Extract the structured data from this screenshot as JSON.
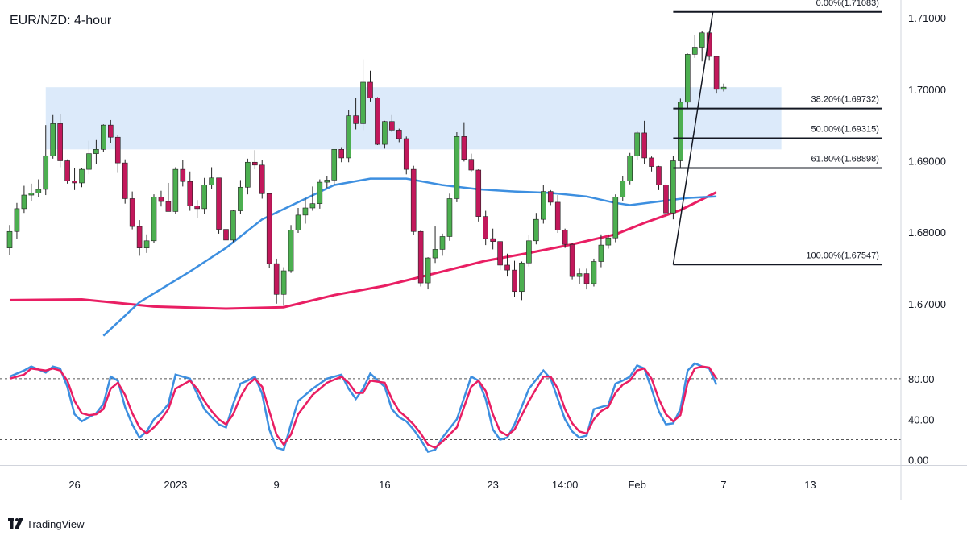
{
  "chart_data": {
    "type": "candlestick",
    "title": "EUR/NZD: 4-hour",
    "brand": "TradingView",
    "colors": {
      "up": "#4caf50",
      "down": "#c2185b",
      "wick": "#222222",
      "sma_fast": "#3d8fe0",
      "sma_slow": "#e91e63",
      "zone": "#dceafa",
      "stoch_k": "#3d8fe0",
      "stoch_d": "#e91e63"
    },
    "price_axis": {
      "min": 1.664,
      "max": 1.7125,
      "ticks": [
        {
          "value": 1.71,
          "label": "1.71000"
        },
        {
          "value": 1.7,
          "label": "1.70000"
        },
        {
          "value": 1.69,
          "label": "1.69000"
        },
        {
          "value": 1.68,
          "label": "1.68000"
        },
        {
          "value": 1.67,
          "label": "1.67000"
        }
      ]
    },
    "time_axis": {
      "start_index": 0,
      "end_index": 120,
      "ticks": [
        {
          "index": 9,
          "label": "26"
        },
        {
          "index": 23,
          "label": "2023"
        },
        {
          "index": 37,
          "label": "9"
        },
        {
          "index": 52,
          "label": "16"
        },
        {
          "index": 67,
          "label": "23"
        },
        {
          "index": 77,
          "label": "14:00"
        },
        {
          "index": 87,
          "label": "Feb"
        },
        {
          "index": 99,
          "label": "7"
        },
        {
          "index": 111,
          "label": "13"
        }
      ]
    },
    "resistance_zone": {
      "low": 1.6916,
      "high": 1.7003,
      "from_index": 5,
      "to_index": 107
    },
    "fibonacci": {
      "high": 1.71083,
      "low": 1.67547,
      "from_index": 92,
      "to_index": 121,
      "levels": [
        {
          "value": 1.71083,
          "label": "0.00%(1.71083)"
        },
        {
          "value": 1.69732,
          "label": "38.20%(1.69732)"
        },
        {
          "value": 1.69315,
          "label": "50.00%(1.69315)"
        },
        {
          "value": 1.68898,
          "label": "61.80%(1.68898)"
        },
        {
          "value": 1.67547,
          "label": "100.00%(1.67547)"
        }
      ]
    },
    "fib_trend_line": {
      "from": {
        "index": 92,
        "value": 1.67547
      },
      "to": {
        "index": 97.5,
        "value": 1.71083
      }
    },
    "sma_fast": [
      [
        13,
        1.6655
      ],
      [
        18,
        1.6702
      ],
      [
        25,
        1.6745
      ],
      [
        30,
        1.6778
      ],
      [
        35,
        1.6818
      ],
      [
        40,
        1.6842
      ],
      [
        45,
        1.6866
      ],
      [
        50,
        1.6875
      ],
      [
        55,
        1.6875
      ],
      [
        60,
        1.6866
      ],
      [
        65,
        1.686
      ],
      [
        70,
        1.6857
      ],
      [
        75,
        1.6855
      ],
      [
        80,
        1.685
      ],
      [
        84,
        1.6841
      ],
      [
        86,
        1.6838
      ],
      [
        90,
        1.6843
      ],
      [
        94,
        1.6848
      ],
      [
        98,
        1.685
      ]
    ],
    "sma_slow": [
      [
        0,
        1.6705
      ],
      [
        10,
        1.6706
      ],
      [
        20,
        1.6696
      ],
      [
        30,
        1.6693
      ],
      [
        38,
        1.6695
      ],
      [
        45,
        1.6712
      ],
      [
        52,
        1.6725
      ],
      [
        60,
        1.6745
      ],
      [
        66,
        1.676
      ],
      [
        72,
        1.6771
      ],
      [
        78,
        1.6783
      ],
      [
        84,
        1.6797
      ],
      [
        88,
        1.6813
      ],
      [
        93,
        1.6831
      ],
      [
        98,
        1.6856
      ]
    ],
    "candles": {
      "open": [
        1.6778,
        1.6801,
        1.6833,
        1.6852,
        1.6855,
        1.686,
        1.6907,
        1.6952,
        1.69,
        1.6872,
        1.6869,
        1.6888,
        1.691,
        1.6916,
        1.695,
        1.6933,
        1.6897,
        1.6847,
        1.6808,
        1.6778,
        1.6788,
        1.6849,
        1.6843,
        1.6829,
        1.6888,
        1.6871,
        1.6837,
        1.6833,
        1.6866,
        1.6876,
        1.6804,
        1.6789,
        1.683,
        1.6863,
        1.6898,
        1.6894,
        1.6854,
        1.6756,
        1.6713,
        1.6746,
        1.6803,
        1.6824,
        1.6834,
        1.684,
        1.687,
        1.6873,
        1.6916,
        1.6904,
        1.6963,
        1.6952,
        1.701,
        1.6988,
        1.6923,
        1.6955,
        1.6943,
        1.6931,
        1.6888,
        1.6801,
        1.6729,
        1.6764,
        1.6776,
        1.6794,
        1.6847,
        1.6934,
        1.6902,
        1.6887,
        1.6822,
        1.6791,
        1.6787,
        1.6754,
        1.6747,
        1.6717,
        1.6757,
        1.6788,
        1.6818,
        1.6857,
        1.6842,
        1.6803,
        1.6783,
        1.6738,
        1.6742,
        1.6728,
        1.6759,
        1.6782,
        1.6792,
        1.6849,
        1.6872,
        1.6907,
        1.6939,
        1.6904,
        1.6892,
        1.6866,
        1.6827,
        1.69,
        1.6982,
        1.7049,
        1.7059,
        1.7079,
        1.7046,
        1.7
      ],
      "high": [
        1.681,
        1.6841,
        1.6865,
        1.6868,
        1.6874,
        1.695,
        1.6964,
        1.6965,
        1.6902,
        1.689,
        1.689,
        1.6928,
        1.6929,
        1.6951,
        1.6957,
        1.6936,
        1.6902,
        1.6857,
        1.6817,
        1.6797,
        1.6853,
        1.6858,
        1.6869,
        1.6891,
        1.6901,
        1.6885,
        1.6845,
        1.6876,
        1.6891,
        1.6876,
        1.6813,
        1.6831,
        1.6873,
        1.6903,
        1.6915,
        1.6901,
        1.6855,
        1.6763,
        1.6751,
        1.681,
        1.6834,
        1.6847,
        1.6864,
        1.6874,
        1.6879,
        1.6916,
        1.6918,
        1.6971,
        1.6988,
        1.7042,
        1.7026,
        1.6989,
        1.6956,
        1.6964,
        1.6945,
        1.6934,
        1.6893,
        1.6803,
        1.6765,
        1.6808,
        1.6798,
        1.6854,
        1.694,
        1.6954,
        1.691,
        1.6888,
        1.683,
        1.6805,
        1.6787,
        1.677,
        1.676,
        1.6759,
        1.6796,
        1.6827,
        1.6866,
        1.6859,
        1.6852,
        1.6805,
        1.6785,
        1.6749,
        1.6749,
        1.6763,
        1.6797,
        1.6797,
        1.6853,
        1.6879,
        1.6911,
        1.6942,
        1.6956,
        1.6906,
        1.6893,
        1.6869,
        1.6907,
        1.6987,
        1.705,
        1.7076,
        1.7082,
        1.7081,
        1.7046,
        1.7008
      ],
      "low": [
        1.6768,
        1.679,
        1.6827,
        1.6843,
        1.6849,
        1.6852,
        1.6903,
        1.6891,
        1.6868,
        1.6859,
        1.6863,
        1.6881,
        1.6896,
        1.6912,
        1.6925,
        1.6883,
        1.684,
        1.6804,
        1.6767,
        1.6771,
        1.6785,
        1.6836,
        1.6835,
        1.6826,
        1.6864,
        1.683,
        1.682,
        1.6826,
        1.686,
        1.6798,
        1.6778,
        1.6786,
        1.6826,
        1.6853,
        1.6888,
        1.6847,
        1.675,
        1.67,
        1.6697,
        1.6743,
        1.6799,
        1.6812,
        1.683,
        1.6833,
        1.6862,
        1.6867,
        1.6898,
        1.6898,
        1.6944,
        1.6943,
        1.6983,
        1.6922,
        1.6917,
        1.694,
        1.6926,
        1.6881,
        1.6796,
        1.6724,
        1.672,
        1.6757,
        1.6767,
        1.6788,
        1.6842,
        1.6899,
        1.6885,
        1.6815,
        1.6782,
        1.6776,
        1.6747,
        1.6738,
        1.6709,
        1.6705,
        1.6752,
        1.6783,
        1.6812,
        1.6838,
        1.6799,
        1.6778,
        1.6734,
        1.6728,
        1.672,
        1.6724,
        1.6751,
        1.6777,
        1.6786,
        1.6844,
        1.6867,
        1.6901,
        1.6895,
        1.6885,
        1.6859,
        1.682,
        1.6818,
        1.6891,
        1.6973,
        1.7044,
        1.7039,
        1.704,
        1.6994,
        1.6997
      ],
      "close": [
        1.6801,
        1.6833,
        1.6852,
        1.6855,
        1.686,
        1.6907,
        1.6952,
        1.69,
        1.6872,
        1.6869,
        1.6888,
        1.691,
        1.6916,
        1.695,
        1.6933,
        1.6897,
        1.6847,
        1.6808,
        1.6778,
        1.6788,
        1.6849,
        1.6843,
        1.6829,
        1.6888,
        1.6871,
        1.6837,
        1.6833,
        1.6866,
        1.6876,
        1.6804,
        1.6789,
        1.683,
        1.6863,
        1.6898,
        1.6894,
        1.6854,
        1.6756,
        1.6713,
        1.6746,
        1.6803,
        1.6824,
        1.6834,
        1.684,
        1.687,
        1.6873,
        1.6916,
        1.6904,
        1.6963,
        1.6952,
        1.701,
        1.6988,
        1.6923,
        1.6955,
        1.6943,
        1.6931,
        1.6888,
        1.6801,
        1.6729,
        1.6764,
        1.6776,
        1.6794,
        1.6847,
        1.6934,
        1.6902,
        1.6887,
        1.6822,
        1.6791,
        1.6787,
        1.6754,
        1.6747,
        1.6717,
        1.6757,
        1.6788,
        1.6818,
        1.6857,
        1.6842,
        1.6803,
        1.6783,
        1.6738,
        1.6742,
        1.6728,
        1.6759,
        1.6782,
        1.6792,
        1.6849,
        1.6872,
        1.6907,
        1.6939,
        1.6904,
        1.6892,
        1.6866,
        1.6827,
        1.69,
        1.6982,
        1.7049,
        1.7059,
        1.7079,
        1.7046,
        1.7,
        1.7003
      ]
    },
    "stochastic": {
      "axis": {
        "min": -5,
        "max": 110,
        "ticks": [
          {
            "value": 80,
            "label": "80.00"
          },
          {
            "value": 40,
            "label": "40.00"
          },
          {
            "value": 0,
            "label": "0.00"
          }
        ]
      },
      "levels": [
        80,
        20
      ],
      "k": [
        [
          0,
          82
        ],
        [
          2,
          88
        ],
        [
          3,
          92
        ],
        [
          5,
          86
        ],
        [
          6,
          92
        ],
        [
          7,
          90
        ],
        [
          8,
          72
        ],
        [
          9,
          45
        ],
        [
          10,
          38
        ],
        [
          11,
          42
        ],
        [
          12,
          46
        ],
        [
          13,
          55
        ],
        [
          14,
          82
        ],
        [
          15,
          78
        ],
        [
          16,
          52
        ],
        [
          17,
          35
        ],
        [
          18,
          22
        ],
        [
          19,
          28
        ],
        [
          20,
          40
        ],
        [
          21,
          46
        ],
        [
          22,
          55
        ],
        [
          23,
          84
        ],
        [
          25,
          80
        ],
        [
          26,
          65
        ],
        [
          27,
          50
        ],
        [
          28,
          42
        ],
        [
          29,
          35
        ],
        [
          30,
          32
        ],
        [
          31,
          55
        ],
        [
          32,
          75
        ],
        [
          33,
          78
        ],
        [
          34,
          82
        ],
        [
          35,
          65
        ],
        [
          36,
          30
        ],
        [
          37,
          12
        ],
        [
          38,
          10
        ],
        [
          39,
          35
        ],
        [
          40,
          58
        ],
        [
          42,
          70
        ],
        [
          44,
          80
        ],
        [
          46,
          84
        ],
        [
          47,
          70
        ],
        [
          48,
          60
        ],
        [
          49,
          70
        ],
        [
          50,
          85
        ],
        [
          52,
          72
        ],
        [
          53,
          50
        ],
        [
          54,
          42
        ],
        [
          55,
          38
        ],
        [
          56,
          30
        ],
        [
          57,
          20
        ],
        [
          58,
          8
        ],
        [
          59,
          10
        ],
        [
          60,
          22
        ],
        [
          62,
          40
        ],
        [
          64,
          82
        ],
        [
          65,
          78
        ],
        [
          66,
          60
        ],
        [
          67,
          30
        ],
        [
          68,
          20
        ],
        [
          69,
          22
        ],
        [
          70,
          35
        ],
        [
          72,
          70
        ],
        [
          74,
          88
        ],
        [
          75,
          80
        ],
        [
          76,
          60
        ],
        [
          77,
          40
        ],
        [
          78,
          28
        ],
        [
          79,
          22
        ],
        [
          80,
          24
        ],
        [
          81,
          50
        ],
        [
          82,
          52
        ],
        [
          83,
          54
        ],
        [
          84,
          75
        ],
        [
          85,
          78
        ],
        [
          86,
          82
        ],
        [
          87,
          93
        ],
        [
          88,
          90
        ],
        [
          89,
          70
        ],
        [
          90,
          48
        ],
        [
          91,
          35
        ],
        [
          92,
          36
        ],
        [
          93,
          50
        ],
        [
          94,
          88
        ],
        [
          95,
          95
        ],
        [
          96,
          92
        ],
        [
          97,
          90
        ],
        [
          98,
          74
        ]
      ],
      "d": [
        [
          0,
          80
        ],
        [
          2,
          84
        ],
        [
          3,
          90
        ],
        [
          5,
          88
        ],
        [
          6,
          90
        ],
        [
          7,
          88
        ],
        [
          8,
          78
        ],
        [
          9,
          58
        ],
        [
          10,
          46
        ],
        [
          11,
          44
        ],
        [
          12,
          45
        ],
        [
          13,
          50
        ],
        [
          14,
          70
        ],
        [
          15,
          76
        ],
        [
          16,
          64
        ],
        [
          17,
          46
        ],
        [
          18,
          32
        ],
        [
          19,
          26
        ],
        [
          20,
          32
        ],
        [
          21,
          40
        ],
        [
          22,
          50
        ],
        [
          23,
          70
        ],
        [
          25,
          78
        ],
        [
          26,
          70
        ],
        [
          27,
          58
        ],
        [
          28,
          48
        ],
        [
          29,
          40
        ],
        [
          30,
          35
        ],
        [
          31,
          45
        ],
        [
          32,
          62
        ],
        [
          33,
          74
        ],
        [
          34,
          80
        ],
        [
          35,
          72
        ],
        [
          36,
          48
        ],
        [
          37,
          25
        ],
        [
          38,
          15
        ],
        [
          39,
          25
        ],
        [
          40,
          45
        ],
        [
          42,
          64
        ],
        [
          44,
          76
        ],
        [
          46,
          82
        ],
        [
          47,
          76
        ],
        [
          48,
          66
        ],
        [
          49,
          66
        ],
        [
          50,
          78
        ],
        [
          52,
          76
        ],
        [
          53,
          60
        ],
        [
          54,
          48
        ],
        [
          55,
          42
        ],
        [
          56,
          35
        ],
        [
          57,
          26
        ],
        [
          58,
          15
        ],
        [
          59,
          12
        ],
        [
          60,
          18
        ],
        [
          62,
          32
        ],
        [
          64,
          72
        ],
        [
          65,
          78
        ],
        [
          66,
          68
        ],
        [
          67,
          45
        ],
        [
          68,
          28
        ],
        [
          69,
          24
        ],
        [
          70,
          30
        ],
        [
          72,
          58
        ],
        [
          74,
          82
        ],
        [
          75,
          82
        ],
        [
          76,
          70
        ],
        [
          77,
          50
        ],
        [
          78,
          36
        ],
        [
          79,
          28
        ],
        [
          80,
          26
        ],
        [
          81,
          40
        ],
        [
          82,
          48
        ],
        [
          83,
          52
        ],
        [
          84,
          66
        ],
        [
          85,
          74
        ],
        [
          86,
          78
        ],
        [
          87,
          88
        ],
        [
          88,
          90
        ],
        [
          89,
          80
        ],
        [
          90,
          60
        ],
        [
          91,
          45
        ],
        [
          92,
          38
        ],
        [
          93,
          44
        ],
        [
          94,
          76
        ],
        [
          95,
          90
        ],
        [
          96,
          92
        ],
        [
          97,
          91
        ],
        [
          98,
          80
        ]
      ]
    }
  }
}
